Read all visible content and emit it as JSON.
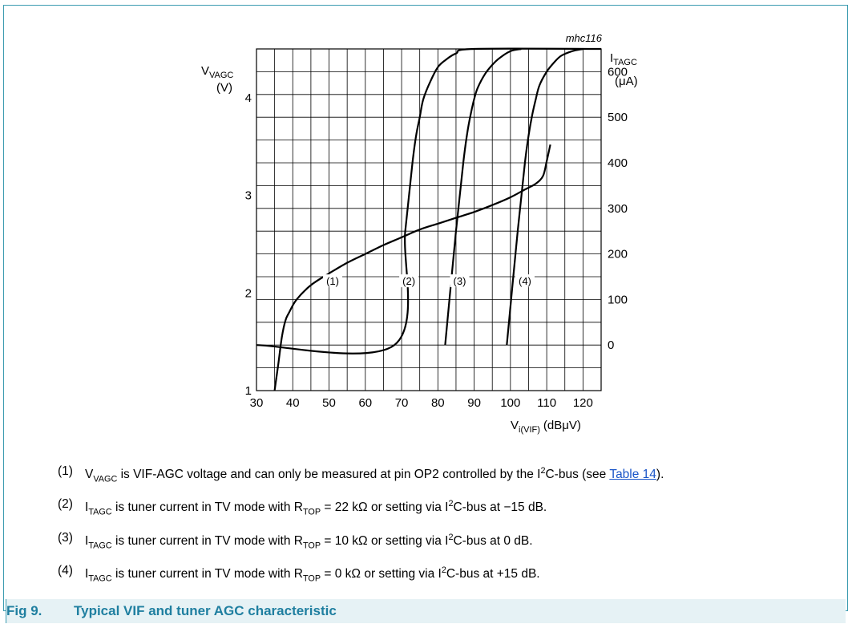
{
  "figure": {
    "label": "Fig 9.",
    "title": "Typical VIF and tuner AGC characteristic",
    "code": "mhc116",
    "frame_color": "#3b9bb0",
    "caption_color": "#1f7fa0",
    "caption_bg": "#e6f2f5"
  },
  "chart_data": {
    "type": "line",
    "x_axis": {
      "label_main": "V",
      "label_sub": "i(VIF)",
      "label_unit": "(dBμV)",
      "range": [
        30,
        125
      ],
      "ticks": [
        30,
        40,
        50,
        60,
        70,
        80,
        90,
        100,
        110,
        120
      ]
    },
    "left_axis": {
      "label_main": "V",
      "label_sub": "VAGC",
      "label_unit": "(V)",
      "range": [
        1,
        4.5
      ],
      "ticks": [
        1,
        2,
        3,
        4
      ]
    },
    "right_axis": {
      "label_main": "I",
      "label_sub": "TAGC",
      "label_unit": "(μA)",
      "range": [
        -100,
        650
      ],
      "ticks": [
        0,
        100,
        200,
        300,
        400,
        500,
        600
      ]
    },
    "grid": true,
    "series": [
      {
        "name": "(1)",
        "axis": "left",
        "x": [
          35,
          36,
          37,
          38,
          39,
          41,
          45,
          50,
          55,
          60,
          65,
          70,
          75,
          80,
          85,
          90,
          95,
          100,
          104,
          107,
          109,
          110,
          111
        ],
        "y": [
          1.0,
          1.27,
          1.55,
          1.72,
          1.8,
          1.93,
          2.08,
          2.2,
          2.31,
          2.4,
          2.49,
          2.57,
          2.65,
          2.71,
          2.77,
          2.83,
          2.9,
          2.98,
          3.06,
          3.12,
          3.2,
          3.35,
          3.52
        ]
      },
      {
        "name": "(2)",
        "axis": "right",
        "x": [
          30,
          68,
          71,
          73,
          74,
          75,
          76,
          78,
          80,
          82,
          85,
          90,
          125
        ],
        "y": [
          0,
          0,
          250,
          400,
          460,
          500,
          540,
          580,
          610,
          625,
          640,
          650,
          650
        ]
      },
      {
        "name": "(3)",
        "axis": "right",
        "x": [
          82,
          85,
          87,
          88,
          89,
          90,
          91,
          93,
          95,
          97,
          100,
          103
        ],
        "y": [
          0,
          250,
          400,
          460,
          505,
          540,
          565,
          595,
          615,
          630,
          645,
          650
        ]
      },
      {
        "name": "(4)",
        "axis": "right",
        "x": [
          99,
          102,
          104,
          105,
          106,
          107,
          108,
          110,
          112,
          114,
          117,
          120
        ],
        "y": [
          0,
          250,
          400,
          460,
          505,
          540,
          570,
          600,
          620,
          635,
          645,
          650
        ]
      }
    ],
    "annotations": [
      {
        "text": "(1)",
        "x": 51,
        "y": 2.1
      },
      {
        "text": "(2)",
        "x": 72,
        "y": 2.1
      },
      {
        "text": "(3)",
        "x": 86,
        "y": 2.1
      },
      {
        "text": "(4)",
        "x": 104,
        "y": 2.1
      }
    ]
  },
  "notes": [
    {
      "num": "(1)",
      "text_before": "V",
      "sub": "VAGC",
      "text_mid": " is VIF-AGC voltage and can only be measured at pin OP2 controlled by the I",
      "sup": "2",
      "text_after": "C-bus (see ",
      "link": "Table 14",
      "text_end": ")."
    },
    {
      "num": "(2)",
      "text_before": "I",
      "sub": "TAGC",
      "text_mid": " is tuner current in TV mode with R",
      "sub2": "TOP",
      "text_mid2": " = 22 kΩ or setting via I",
      "sup": "2",
      "text_after": "C-bus at −15 dB."
    },
    {
      "num": "(3)",
      "text_before": "I",
      "sub": "TAGC",
      "text_mid": " is tuner current in TV mode with R",
      "sub2": "TOP",
      "text_mid2": " = 10 kΩ or setting via I",
      "sup": "2",
      "text_after": "C-bus at 0 dB."
    },
    {
      "num": "(4)",
      "text_before": "I",
      "sub": "TAGC",
      "text_mid": " is tuner current in TV mode with R",
      "sub2": "TOP",
      "text_mid2": " = 0 kΩ or setting via I",
      "sup": "2",
      "text_after": "C-bus at +15 dB."
    }
  ]
}
